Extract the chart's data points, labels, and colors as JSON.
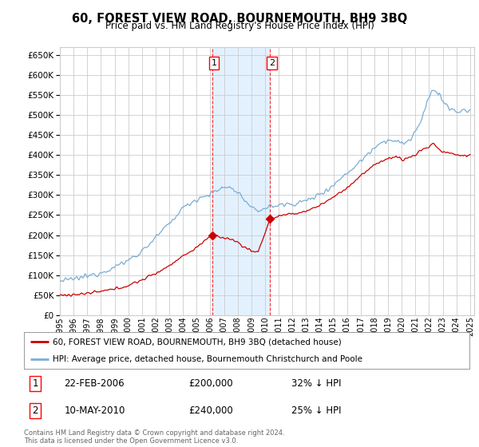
{
  "title": "60, FOREST VIEW ROAD, BOURNEMOUTH, BH9 3BQ",
  "subtitle": "Price paid vs. HM Land Registry's House Price Index (HPI)",
  "ylim": [
    0,
    670000
  ],
  "yticks": [
    0,
    50000,
    100000,
    150000,
    200000,
    250000,
    300000,
    350000,
    400000,
    450000,
    500000,
    550000,
    600000,
    650000
  ],
  "xlim_start": 1995.0,
  "xlim_end": 2025.3,
  "sale1_x": 2006.13,
  "sale1_y": 200000,
  "sale1_label": "1",
  "sale1_date": "22-FEB-2006",
  "sale1_price": "£200,000",
  "sale1_hpi": "32% ↓ HPI",
  "sale2_x": 2010.36,
  "sale2_y": 240000,
  "sale2_label": "2",
  "sale2_date": "10-MAY-2010",
  "sale2_price": "£240,000",
  "sale2_hpi": "25% ↓ HPI",
  "legend_line1": "60, FOREST VIEW ROAD, BOURNEMOUTH, BH9 3BQ (detached house)",
  "legend_line2": "HPI: Average price, detached house, Bournemouth Christchurch and Poole",
  "footer": "Contains HM Land Registry data © Crown copyright and database right 2024.\nThis data is licensed under the Open Government Licence v3.0.",
  "sale_color": "#cc0000",
  "hpi_color": "#7aadd4",
  "bg_color": "#ffffff",
  "grid_color": "#cccccc",
  "highlight_color": "#ddeeff"
}
